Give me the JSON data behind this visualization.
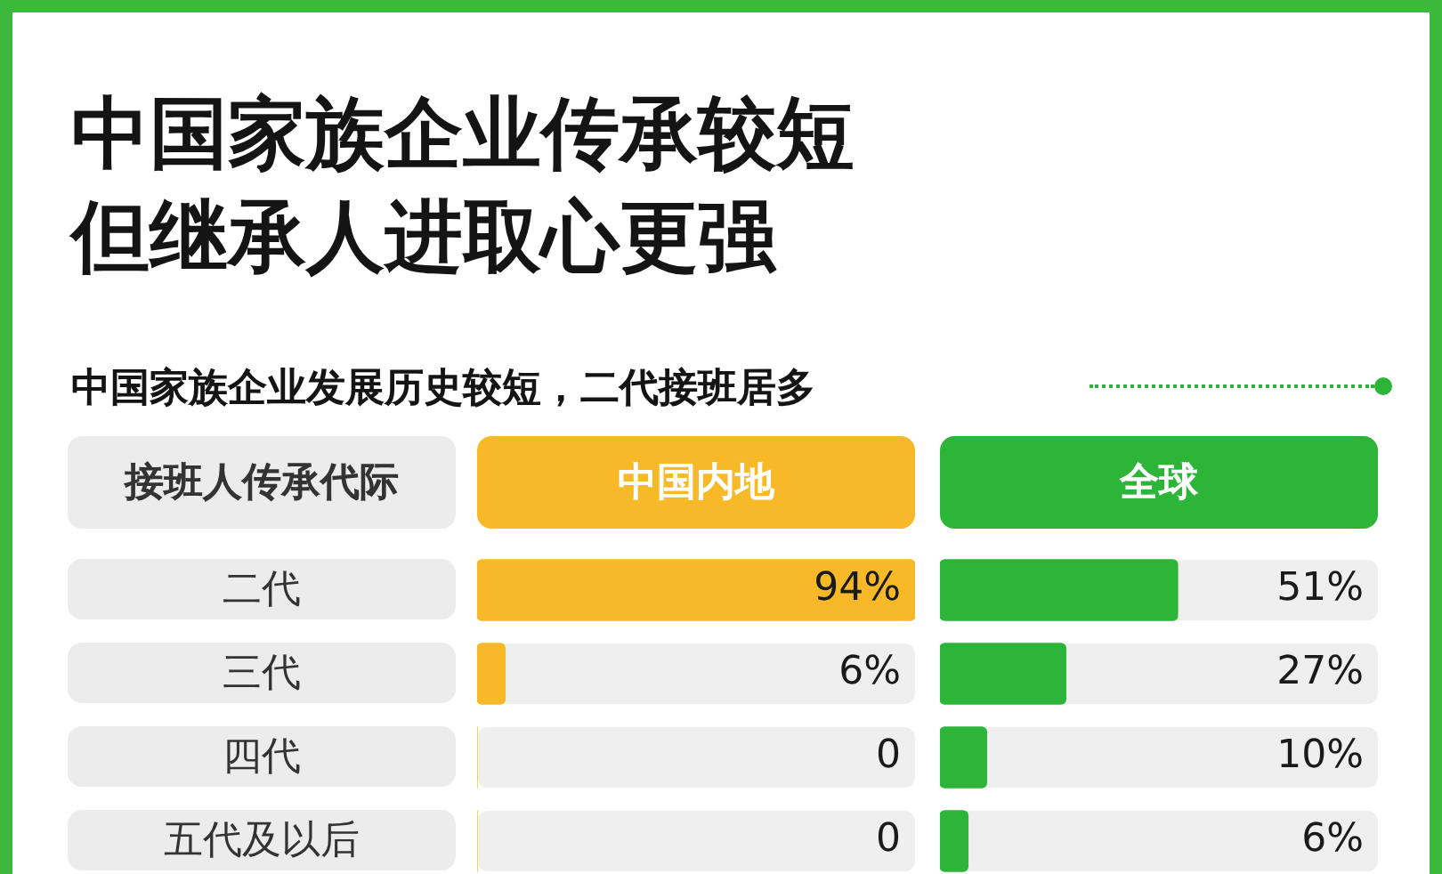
{
  "chart_data": [
    {
      "type": "bar",
      "orientation": "horizontal",
      "title": "中国家族企业传承较短但继承人进取心更强",
      "subtitle": "中国家族企业发展历史较短，二代接班居多",
      "ylabel": "接班人传承代际",
      "categories": [
        "二代",
        "三代",
        "四代",
        "五代及以后"
      ],
      "series": [
        {
          "name": "中国内地",
          "color": "#f7b928",
          "values": [
            94,
            6,
            0,
            0
          ],
          "value_labels": [
            "94%",
            "6%",
            "0",
            "0"
          ]
        }
      ],
      "legend": "top",
      "tick_labels": "y"
    },
    {
      "type": "bar",
      "orientation": "horizontal",
      "categories": [
        null,
        null,
        null,
        null
      ],
      "series": [
        {
          "name": "全球",
          "color": "#2db53a",
          "values": [
            51,
            27,
            10,
            6
          ],
          "value_labels": [
            "51%",
            "27%",
            "10%",
            "6%"
          ]
        }
      ],
      "legend": "top",
      "tick_labels": false
    }
  ]
}
